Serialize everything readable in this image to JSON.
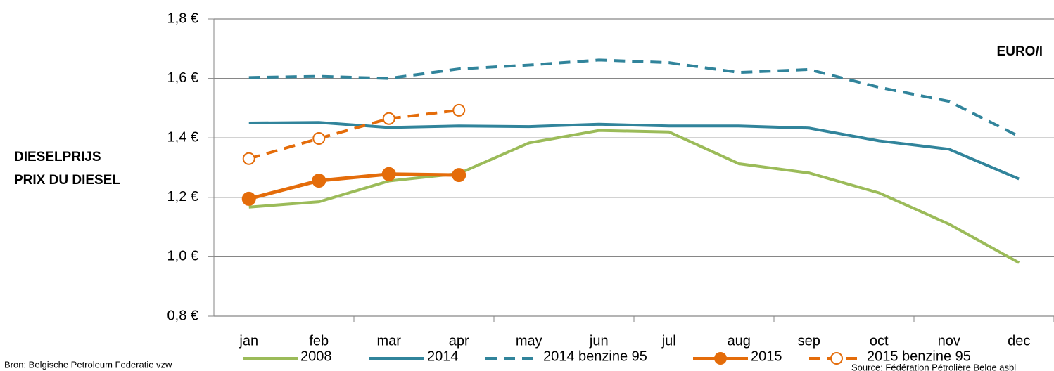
{
  "chart_data": {
    "type": "line",
    "y_label_lines": [
      "DIESELPRIJS",
      "PRIX DU DIESEL"
    ],
    "unit_label": "EURO/l",
    "source_left": "Bron: Belgische Petroleum Federatie vzw",
    "source_right": "Source: Fédération Pétrolière Belge asbl",
    "categories": [
      "jan",
      "feb",
      "mar",
      "apr",
      "may",
      "jun",
      "jul",
      "aug",
      "sep",
      "oct",
      "nov",
      "dec"
    ],
    "ylim": [
      0.8,
      1.8
    ],
    "yticks": [
      {
        "value": 0.8,
        "label": "0,8 €"
      },
      {
        "value": 1.0,
        "label": "1,0 €"
      },
      {
        "value": 1.2,
        "label": "1,2 €"
      },
      {
        "value": 1.4,
        "label": "1,4 €"
      },
      {
        "value": 1.6,
        "label": "1,6 €"
      },
      {
        "value": 1.8,
        "label": "1,8 €"
      }
    ],
    "grid": true,
    "series": [
      {
        "name": "2008",
        "color": "#9bbb59",
        "dash": false,
        "marker": "none",
        "values": [
          1.167,
          1.185,
          1.255,
          1.28,
          1.383,
          1.425,
          1.42,
          1.313,
          1.282,
          1.215,
          1.11,
          0.98
        ]
      },
      {
        "name": "2014",
        "color": "#31849b",
        "dash": false,
        "marker": "none",
        "values": [
          1.45,
          1.452,
          1.435,
          1.44,
          1.438,
          1.446,
          1.44,
          1.44,
          1.433,
          1.39,
          1.362,
          1.262
        ]
      },
      {
        "name": "2014 benzine 95",
        "color": "#31849b",
        "dash": true,
        "marker": "none",
        "values": [
          1.603,
          1.607,
          1.6,
          1.632,
          1.645,
          1.662,
          1.653,
          1.62,
          1.63,
          1.57,
          1.523,
          1.405
        ]
      },
      {
        "name": "2015",
        "color": "#e46c0a",
        "dash": false,
        "marker": "filled",
        "values": [
          1.195,
          1.256,
          1.278,
          1.275,
          null,
          null,
          null,
          null,
          null,
          null,
          null,
          null
        ]
      },
      {
        "name": "2015 benzine 95",
        "color": "#e46c0a",
        "dash": true,
        "marker": "open",
        "values": [
          1.33,
          1.398,
          1.465,
          1.493,
          null,
          null,
          null,
          null,
          null,
          null,
          null,
          null
        ]
      }
    ]
  }
}
